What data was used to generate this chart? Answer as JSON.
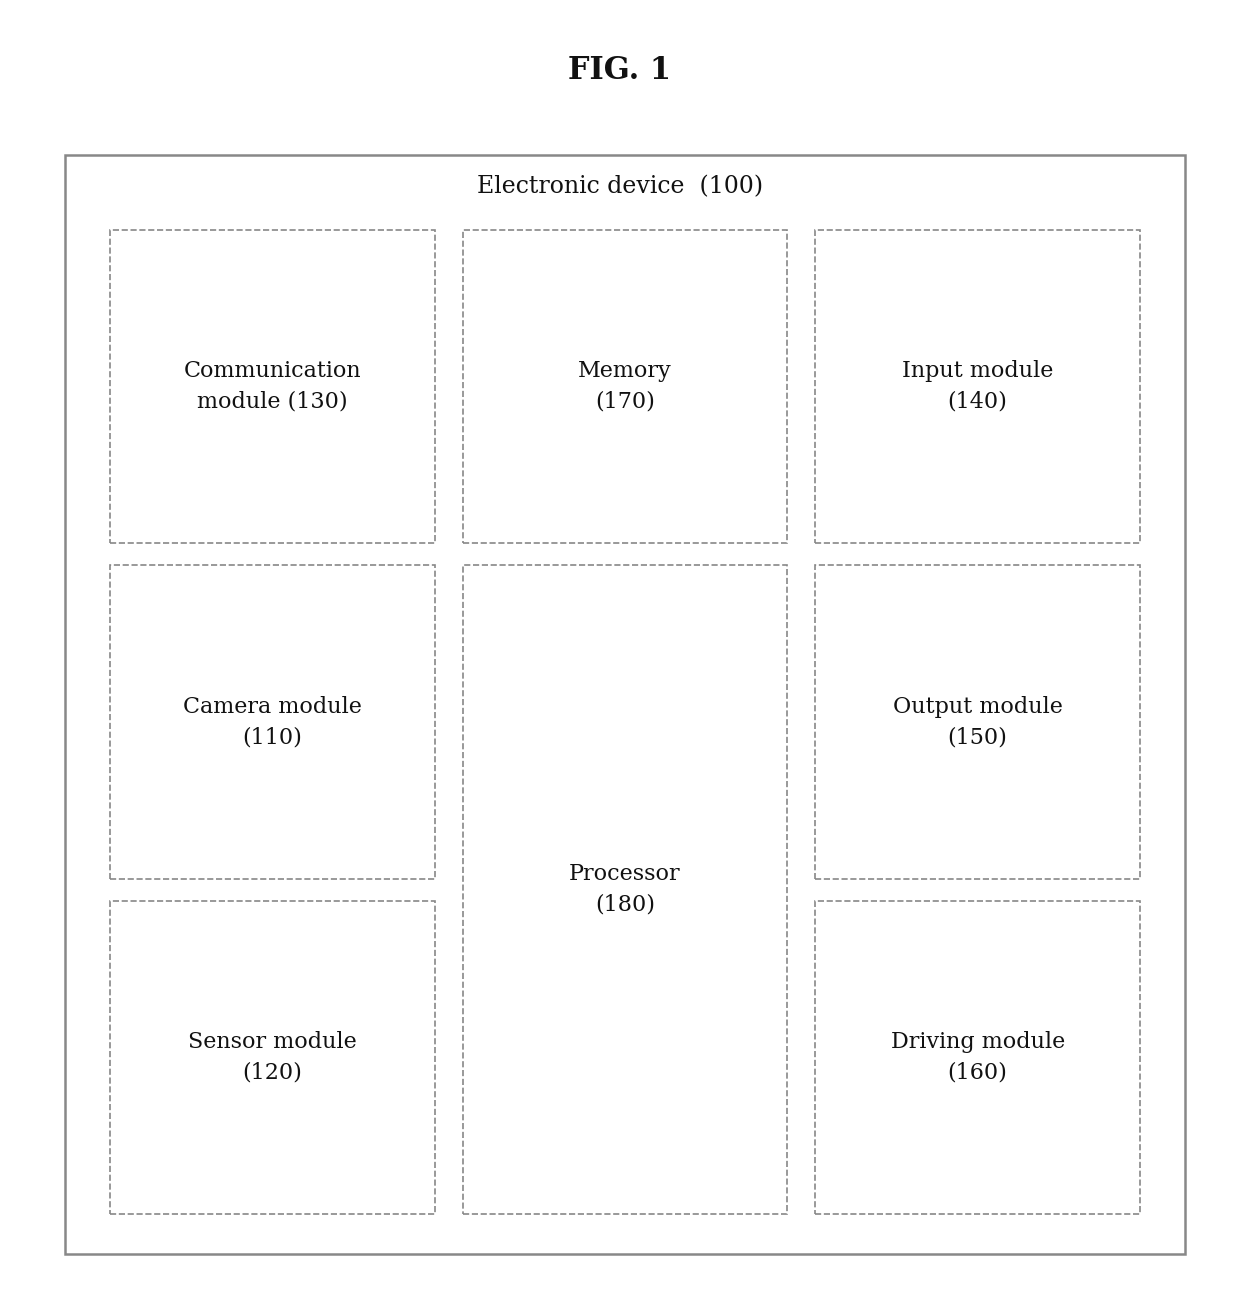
{
  "title": "FIG. 1",
  "outer_box_label": "Electronic device  (100)",
  "background_color": "#ffffff",
  "outer_box_color": "#888888",
  "inner_box_color": "#888888",
  "title_fontsize": 22,
  "label_fontsize": 16,
  "outer_label_fontsize": 17,
  "fig_width": 12.4,
  "fig_height": 13.09,
  "dpi": 100,
  "boxes": [
    {
      "label": "Communication\nmodule (130)",
      "col": 0,
      "row": 0,
      "rowspan": 1,
      "tall": false
    },
    {
      "label": "Memory\n(170)",
      "col": 1,
      "row": 0,
      "rowspan": 1,
      "tall": false
    },
    {
      "label": "Input module\n(140)",
      "col": 2,
      "row": 0,
      "rowspan": 1,
      "tall": false
    },
    {
      "label": "Camera module\n(110)",
      "col": 0,
      "row": 1,
      "rowspan": 1,
      "tall": false
    },
    {
      "label": "Processor\n(180)",
      "col": 1,
      "row": 1,
      "rowspan": 2,
      "tall": true
    },
    {
      "label": "Output module\n(150)",
      "col": 2,
      "row": 1,
      "rowspan": 1,
      "tall": false
    },
    {
      "label": "Sensor module\n(120)",
      "col": 0,
      "row": 2,
      "rowspan": 1,
      "tall": false
    },
    {
      "label": "Driving module\n(160)",
      "col": 2,
      "row": 2,
      "rowspan": 1,
      "tall": false
    }
  ]
}
